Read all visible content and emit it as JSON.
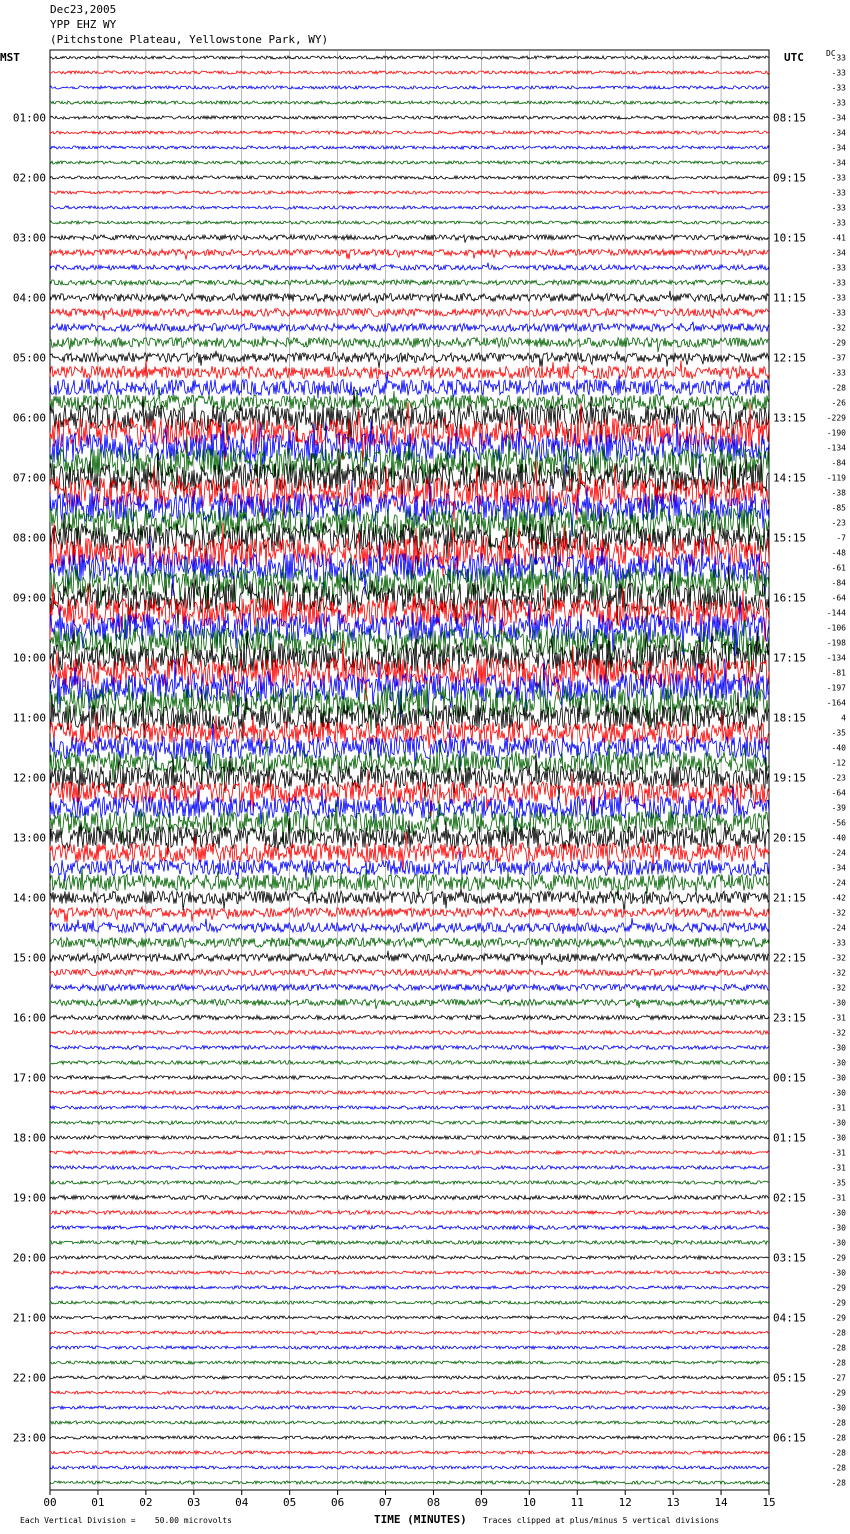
{
  "header": {
    "date": "Dec23,2005",
    "station": "YPP EHZ WY",
    "location": "(Pitchstone Plateau, Yellowstone Park, WY)"
  },
  "left_axis_label": "MST",
  "right_axis_label": "UTC",
  "dc_label": "DC",
  "footer": {
    "scale": "Each Vertical Division =    50.00 microvolts",
    "xlabel": "TIME (MINUTES)",
    "clip_note": "Traces clipped at plus/minus 5 vertical divisions"
  },
  "trace_colors": [
    "#000000",
    "#ff0000",
    "#0000ff",
    "#006400"
  ],
  "chart_data": {
    "type": "line",
    "title": "YPP EHZ WY",
    "xlabel": "TIME (MINUTES)",
    "xlim": [
      0,
      15
    ],
    "x_ticks": [
      "00",
      "01",
      "02",
      "03",
      "04",
      "05",
      "06",
      "07",
      "08",
      "09",
      "10",
      "11",
      "12",
      "13",
      "14",
      "15"
    ],
    "left_hour_labels": [
      "01:00",
      "02:00",
      "03:00",
      "04:00",
      "05:00",
      "06:00",
      "07:00",
      "08:00",
      "09:00",
      "10:00",
      "11:00",
      "12:00",
      "13:00",
      "14:00",
      "15:00",
      "16:00",
      "17:00",
      "18:00",
      "19:00",
      "20:00",
      "21:00",
      "22:00",
      "23:00"
    ],
    "right_hour_labels": [
      "08:15",
      "09:15",
      "10:15",
      "11:15",
      "12:15",
      "13:15",
      "14:15",
      "15:15",
      "16:15",
      "17:15",
      "18:15",
      "19:15",
      "20:15",
      "21:15",
      "22:15",
      "23:15",
      "00:15",
      "01:15",
      "02:15",
      "03:15",
      "04:15",
      "05:15",
      "06:15"
    ],
    "dc_offsets": [
      -33,
      -33,
      -33,
      -33,
      -34,
      -34,
      -34,
      -34,
      -33,
      -33,
      -33,
      -33,
      -41,
      -34,
      -33,
      -33,
      -33,
      -33,
      -32,
      -29,
      -37,
      -33,
      -28,
      -26,
      -229,
      -190,
      -134,
      -84,
      -119,
      -38,
      -85,
      -23,
      -7,
      -48,
      -61,
      -84,
      -64,
      -144,
      -106,
      -198,
      -134,
      -81,
      -197,
      -164,
      4,
      -35,
      -40,
      -12,
      -23,
      -64,
      -39,
      -56,
      -40,
      -24,
      -34,
      -24,
      -42,
      -32,
      -24,
      -33,
      -32,
      -32,
      -32,
      -30,
      -31,
      -32,
      -30,
      -30,
      -30,
      -30,
      -31,
      -30,
      -30,
      -31,
      -31,
      -35,
      -31,
      -30,
      -30,
      -30,
      -29,
      -30,
      -29,
      -29,
      -29,
      -28,
      -28,
      -28,
      -27,
      -29,
      -30,
      -28,
      -28,
      -28,
      -28,
      -28
    ],
    "activity_levels": [
      1,
      1,
      1,
      1,
      1,
      1,
      1,
      1,
      1,
      1,
      1,
      1,
      1.6,
      2,
      1.6,
      1.6,
      2.5,
      2.5,
      2.5,
      3,
      3,
      4,
      5,
      5,
      8,
      9,
      9,
      9,
      9,
      9,
      9,
      9,
      9,
      9,
      9,
      9,
      9,
      9,
      9,
      9,
      9,
      9,
      9,
      9,
      8,
      7,
      7,
      7,
      7,
      7,
      7,
      7,
      7,
      6,
      5,
      5,
      4,
      3,
      3,
      3,
      2.5,
      2,
      2,
      2,
      1.4,
      1.2,
      1.2,
      1.2,
      1.1,
      1.1,
      1.1,
      1.1,
      1.1,
      1.1,
      1.1,
      1.1,
      1.3,
      1.2,
      1.2,
      1.2,
      1.1,
      1,
      1,
      1,
      1,
      1,
      1,
      1,
      1,
      1,
      1,
      1,
      1,
      1,
      1,
      1
    ]
  }
}
